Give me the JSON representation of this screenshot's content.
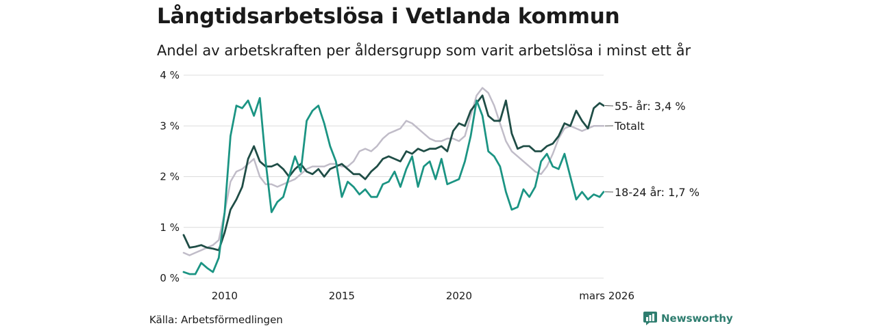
{
  "title": "Långtidsarbetslösa i Vetlanda kommun",
  "subtitle": "Andel av arbetskraften per åldersgrupp som varit arbetslösa i minst ett år",
  "source": "Källa: Arbetsförmedlingen",
  "brand": "Newsworthy",
  "colors": {
    "age55": "#1f4d46",
    "total": "#c0bcc8",
    "age1824": "#1b9483",
    "grid": "#dcdcdc",
    "brand": "#2e7d6f"
  },
  "chart_data": {
    "type": "line",
    "title": "Långtidsarbetslösa i Vetlanda kommun",
    "subtitle": "Andel av arbetskraften per åldersgrupp som varit arbetslösa i minst ett år",
    "xlabel": "",
    "ylabel": "",
    "ylim": [
      0,
      4
    ],
    "xlim": [
      2008.25,
      2026.17
    ],
    "y_ticks": [
      {
        "value": 0,
        "label": "0 %"
      },
      {
        "value": 1,
        "label": "1 %"
      },
      {
        "value": 2,
        "label": "2 %"
      },
      {
        "value": 3,
        "label": "3 %"
      },
      {
        "value": 4,
        "label": "4 %"
      }
    ],
    "x_ticks": [
      {
        "value": 2010,
        "label": "2010"
      },
      {
        "value": 2015,
        "label": "2015"
      },
      {
        "value": 2020,
        "label": "2020"
      },
      {
        "value": 2026.17,
        "label": "mars 2026"
      }
    ],
    "grid": true,
    "series": [
      {
        "name": "Totalt",
        "color_key": "total",
        "end_label": "Totalt",
        "points": [
          [
            2008.25,
            0.5
          ],
          [
            2008.5,
            0.45
          ],
          [
            2008.75,
            0.5
          ],
          [
            2009.0,
            0.55
          ],
          [
            2009.25,
            0.6
          ],
          [
            2009.5,
            0.65
          ],
          [
            2009.75,
            0.75
          ],
          [
            2010.0,
            1.3
          ],
          [
            2010.25,
            1.9
          ],
          [
            2010.5,
            2.1
          ],
          [
            2010.75,
            2.15
          ],
          [
            2011.0,
            2.25
          ],
          [
            2011.25,
            2.35
          ],
          [
            2011.5,
            2.0
          ],
          [
            2011.75,
            1.85
          ],
          [
            2012.0,
            1.85
          ],
          [
            2012.25,
            1.8
          ],
          [
            2012.5,
            1.85
          ],
          [
            2012.75,
            1.9
          ],
          [
            2013.0,
            1.95
          ],
          [
            2013.25,
            2.05
          ],
          [
            2013.5,
            2.15
          ],
          [
            2013.75,
            2.2
          ],
          [
            2014.0,
            2.2
          ],
          [
            2014.25,
            2.2
          ],
          [
            2014.5,
            2.25
          ],
          [
            2014.75,
            2.25
          ],
          [
            2015.0,
            2.2
          ],
          [
            2015.25,
            2.2
          ],
          [
            2015.5,
            2.3
          ],
          [
            2015.75,
            2.5
          ],
          [
            2016.0,
            2.55
          ],
          [
            2016.25,
            2.5
          ],
          [
            2016.5,
            2.6
          ],
          [
            2016.75,
            2.75
          ],
          [
            2017.0,
            2.85
          ],
          [
            2017.25,
            2.9
          ],
          [
            2017.5,
            2.95
          ],
          [
            2017.75,
            3.1
          ],
          [
            2018.0,
            3.05
          ],
          [
            2018.25,
            2.95
          ],
          [
            2018.5,
            2.85
          ],
          [
            2018.75,
            2.75
          ],
          [
            2019.0,
            2.7
          ],
          [
            2019.25,
            2.7
          ],
          [
            2019.5,
            2.75
          ],
          [
            2019.75,
            2.75
          ],
          [
            2020.0,
            2.7
          ],
          [
            2020.25,
            2.8
          ],
          [
            2020.5,
            3.2
          ],
          [
            2020.75,
            3.6
          ],
          [
            2021.0,
            3.75
          ],
          [
            2021.25,
            3.65
          ],
          [
            2021.5,
            3.4
          ],
          [
            2021.75,
            3.05
          ],
          [
            2022.0,
            2.7
          ],
          [
            2022.25,
            2.5
          ],
          [
            2022.5,
            2.4
          ],
          [
            2022.75,
            2.3
          ],
          [
            2023.0,
            2.2
          ],
          [
            2023.25,
            2.1
          ],
          [
            2023.5,
            2.05
          ],
          [
            2023.75,
            2.2
          ],
          [
            2024.0,
            2.45
          ],
          [
            2024.25,
            2.75
          ],
          [
            2024.5,
            2.95
          ],
          [
            2024.75,
            3.0
          ],
          [
            2025.0,
            2.95
          ],
          [
            2025.25,
            2.9
          ],
          [
            2025.5,
            2.95
          ],
          [
            2025.75,
            3.0
          ],
          [
            2026.0,
            3.0
          ],
          [
            2026.17,
            3.0
          ]
        ]
      },
      {
        "name": "55- år",
        "color_key": "age55",
        "end_label": "55- år: 3,4 %",
        "points": [
          [
            2008.25,
            0.85
          ],
          [
            2008.5,
            0.6
          ],
          [
            2008.75,
            0.62
          ],
          [
            2009.0,
            0.65
          ],
          [
            2009.25,
            0.6
          ],
          [
            2009.5,
            0.58
          ],
          [
            2009.75,
            0.55
          ],
          [
            2010.0,
            0.9
          ],
          [
            2010.25,
            1.35
          ],
          [
            2010.5,
            1.55
          ],
          [
            2010.75,
            1.8
          ],
          [
            2011.0,
            2.35
          ],
          [
            2011.25,
            2.6
          ],
          [
            2011.5,
            2.3
          ],
          [
            2011.75,
            2.2
          ],
          [
            2012.0,
            2.2
          ],
          [
            2012.25,
            2.25
          ],
          [
            2012.5,
            2.15
          ],
          [
            2012.75,
            2.0
          ],
          [
            2013.0,
            2.15
          ],
          [
            2013.25,
            2.25
          ],
          [
            2013.5,
            2.1
          ],
          [
            2013.75,
            2.05
          ],
          [
            2014.0,
            2.15
          ],
          [
            2014.25,
            2.0
          ],
          [
            2014.5,
            2.15
          ],
          [
            2014.75,
            2.2
          ],
          [
            2015.0,
            2.25
          ],
          [
            2015.25,
            2.15
          ],
          [
            2015.5,
            2.05
          ],
          [
            2015.75,
            2.05
          ],
          [
            2016.0,
            1.95
          ],
          [
            2016.25,
            2.1
          ],
          [
            2016.5,
            2.2
          ],
          [
            2016.75,
            2.35
          ],
          [
            2017.0,
            2.4
          ],
          [
            2017.25,
            2.35
          ],
          [
            2017.5,
            2.3
          ],
          [
            2017.75,
            2.5
          ],
          [
            2018.0,
            2.45
          ],
          [
            2018.25,
            2.55
          ],
          [
            2018.5,
            2.5
          ],
          [
            2018.75,
            2.55
          ],
          [
            2019.0,
            2.55
          ],
          [
            2019.25,
            2.6
          ],
          [
            2019.5,
            2.5
          ],
          [
            2019.75,
            2.9
          ],
          [
            2020.0,
            3.05
          ],
          [
            2020.25,
            3.0
          ],
          [
            2020.5,
            3.3
          ],
          [
            2020.75,
            3.45
          ],
          [
            2021.0,
            3.6
          ],
          [
            2021.25,
            3.2
          ],
          [
            2021.5,
            3.1
          ],
          [
            2021.75,
            3.1
          ],
          [
            2022.0,
            3.5
          ],
          [
            2022.25,
            2.85
          ],
          [
            2022.5,
            2.55
          ],
          [
            2022.75,
            2.6
          ],
          [
            2023.0,
            2.6
          ],
          [
            2023.25,
            2.5
          ],
          [
            2023.5,
            2.5
          ],
          [
            2023.75,
            2.6
          ],
          [
            2024.0,
            2.65
          ],
          [
            2024.25,
            2.8
          ],
          [
            2024.5,
            3.05
          ],
          [
            2024.75,
            3.0
          ],
          [
            2025.0,
            3.3
          ],
          [
            2025.25,
            3.1
          ],
          [
            2025.5,
            2.95
          ],
          [
            2025.75,
            3.35
          ],
          [
            2026.0,
            3.45
          ],
          [
            2026.17,
            3.4
          ]
        ]
      },
      {
        "name": "18-24 år",
        "color_key": "age1824",
        "end_label": "18-24 år: 1,7 %",
        "points": [
          [
            2008.25,
            0.12
          ],
          [
            2008.5,
            0.08
          ],
          [
            2008.75,
            0.08
          ],
          [
            2009.0,
            0.3
          ],
          [
            2009.25,
            0.2
          ],
          [
            2009.5,
            0.12
          ],
          [
            2009.75,
            0.4
          ],
          [
            2010.0,
            1.3
          ],
          [
            2010.25,
            2.8
          ],
          [
            2010.5,
            3.4
          ],
          [
            2010.75,
            3.35
          ],
          [
            2011.0,
            3.5
          ],
          [
            2011.25,
            3.2
          ],
          [
            2011.5,
            3.55
          ],
          [
            2011.75,
            2.3
          ],
          [
            2012.0,
            1.3
          ],
          [
            2012.25,
            1.5
          ],
          [
            2012.5,
            1.6
          ],
          [
            2012.75,
            2.0
          ],
          [
            2013.0,
            2.4
          ],
          [
            2013.25,
            2.1
          ],
          [
            2013.5,
            3.1
          ],
          [
            2013.75,
            3.3
          ],
          [
            2014.0,
            3.4
          ],
          [
            2014.25,
            3.05
          ],
          [
            2014.5,
            2.6
          ],
          [
            2014.75,
            2.3
          ],
          [
            2015.0,
            1.6
          ],
          [
            2015.25,
            1.9
          ],
          [
            2015.5,
            1.8
          ],
          [
            2015.75,
            1.65
          ],
          [
            2016.0,
            1.75
          ],
          [
            2016.25,
            1.6
          ],
          [
            2016.5,
            1.6
          ],
          [
            2016.75,
            1.85
          ],
          [
            2017.0,
            1.9
          ],
          [
            2017.25,
            2.1
          ],
          [
            2017.5,
            1.8
          ],
          [
            2017.75,
            2.15
          ],
          [
            2018.0,
            2.4
          ],
          [
            2018.25,
            1.8
          ],
          [
            2018.5,
            2.2
          ],
          [
            2018.75,
            2.3
          ],
          [
            2019.0,
            1.95
          ],
          [
            2019.25,
            2.35
          ],
          [
            2019.5,
            1.85
          ],
          [
            2019.75,
            1.9
          ],
          [
            2020.0,
            1.95
          ],
          [
            2020.25,
            2.3
          ],
          [
            2020.5,
            2.8
          ],
          [
            2020.75,
            3.5
          ],
          [
            2021.0,
            3.2
          ],
          [
            2021.25,
            2.5
          ],
          [
            2021.5,
            2.4
          ],
          [
            2021.75,
            2.2
          ],
          [
            2022.0,
            1.7
          ],
          [
            2022.25,
            1.35
          ],
          [
            2022.5,
            1.4
          ],
          [
            2022.75,
            1.75
          ],
          [
            2023.0,
            1.6
          ],
          [
            2023.25,
            1.8
          ],
          [
            2023.5,
            2.3
          ],
          [
            2023.75,
            2.45
          ],
          [
            2024.0,
            2.2
          ],
          [
            2024.25,
            2.15
          ],
          [
            2024.5,
            2.45
          ],
          [
            2024.75,
            2.0
          ],
          [
            2025.0,
            1.55
          ],
          [
            2025.25,
            1.7
          ],
          [
            2025.5,
            1.55
          ],
          [
            2025.75,
            1.65
          ],
          [
            2026.0,
            1.6
          ],
          [
            2026.17,
            1.7
          ]
        ]
      }
    ]
  }
}
